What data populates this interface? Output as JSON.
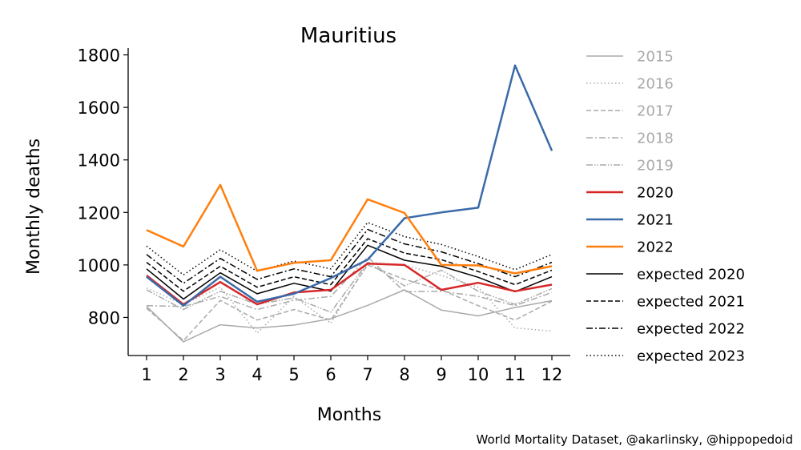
{
  "chart_data": {
    "type": "line",
    "title": "Mauritius",
    "xlabel": "Months",
    "ylabel": "Monthly deaths",
    "x": [
      1,
      2,
      3,
      4,
      5,
      6,
      7,
      8,
      9,
      10,
      11,
      12
    ],
    "xticks": [
      "1",
      "2",
      "3",
      "4",
      "5",
      "6",
      "7",
      "8",
      "9",
      "10",
      "11",
      "12"
    ],
    "yticks": [
      800,
      1000,
      1200,
      1400,
      1600,
      1800
    ],
    "ylim": [
      655,
      1820
    ],
    "xlim": [
      0.5,
      12.5
    ],
    "grid": false,
    "legend_position": "right",
    "series": [
      {
        "name": "2015",
        "color": "#aaaaaa",
        "dash": "solid",
        "width": 1.5,
        "legend_faded": true,
        "values": [
          842,
          707,
          772,
          760,
          771,
          795,
          846,
          905,
          828,
          806,
          838,
          864
        ]
      },
      {
        "name": "2016",
        "color": "#aaaaaa",
        "dash": "dotted",
        "width": 1.5,
        "legend_faded": true,
        "values": [
          912,
          850,
          915,
          740,
          880,
          778,
          1010,
          1000,
          960,
          915,
          760,
          748
        ]
      },
      {
        "name": "2017",
        "color": "#aaaaaa",
        "dash": "dashed",
        "width": 1.5,
        "legend_faded": true,
        "values": [
          835,
          712,
          865,
          790,
          830,
          790,
          1000,
          945,
          905,
          845,
          790,
          862
        ]
      },
      {
        "name": "2018",
        "color": "#aaaaaa",
        "dash": "dashdot",
        "width": 1.5,
        "legend_faded": true,
        "values": [
          845,
          842,
          880,
          830,
          865,
          880,
          1030,
          898,
          900,
          880,
          845,
          895
        ]
      },
      {
        "name": "2019",
        "color": "#aaaaaa",
        "dash": "dashdotdot",
        "width": 1.5,
        "legend_faded": true,
        "values": [
          905,
          830,
          900,
          850,
          875,
          820,
          1010,
          920,
          980,
          900,
          850,
          910
        ]
      },
      {
        "name": "2020",
        "color": "#d62728",
        "dash": "solid",
        "width": 2.5,
        "values": [
          960,
          850,
          935,
          850,
          895,
          905,
          1005,
          1000,
          905,
          932,
          900,
          925
        ]
      },
      {
        "name": "2021",
        "color": "#3a6aa8",
        "dash": "solid",
        "width": 2.5,
        "values": [
          955,
          845,
          955,
          860,
          890,
          950,
          1020,
          1178,
          1200,
          1218,
          1760,
          1435
        ]
      },
      {
        "name": "2022",
        "color": "#ff7f0e",
        "dash": "solid",
        "width": 2.5,
        "values": [
          1133,
          1070,
          1305,
          978,
          1008,
          1018,
          1250,
          1198,
          1000,
          998,
          968,
          995
        ]
      },
      {
        "name": "expected 2020",
        "color": "#000000",
        "dash": "solid",
        "width": 1.5,
        "values": [
          985,
          870,
          970,
          890,
          930,
          900,
          1075,
          1018,
          995,
          953,
          898,
          955
        ]
      },
      {
        "name": "expected 2021",
        "color": "#000000",
        "dash": "dashed",
        "width": 1.5,
        "values": [
          1010,
          900,
          995,
          915,
          955,
          925,
          1100,
          1045,
          1020,
          975,
          925,
          980
        ]
      },
      {
        "name": "expected 2022",
        "color": "#000000",
        "dash": "dashdot",
        "width": 1.5,
        "values": [
          1040,
          930,
          1025,
          945,
          985,
          955,
          1135,
          1080,
          1050,
          1005,
          955,
          1010
        ]
      },
      {
        "name": "expected 2023",
        "color": "#000000",
        "dash": "dotted",
        "width": 1.5,
        "values": [
          1072,
          962,
          1058,
          976,
          1015,
          985,
          1162,
          1108,
          1078,
          1032,
          982,
          1040
        ]
      }
    ]
  },
  "credit": "World Mortality Dataset, @akarlinsky, @hippopedoid"
}
